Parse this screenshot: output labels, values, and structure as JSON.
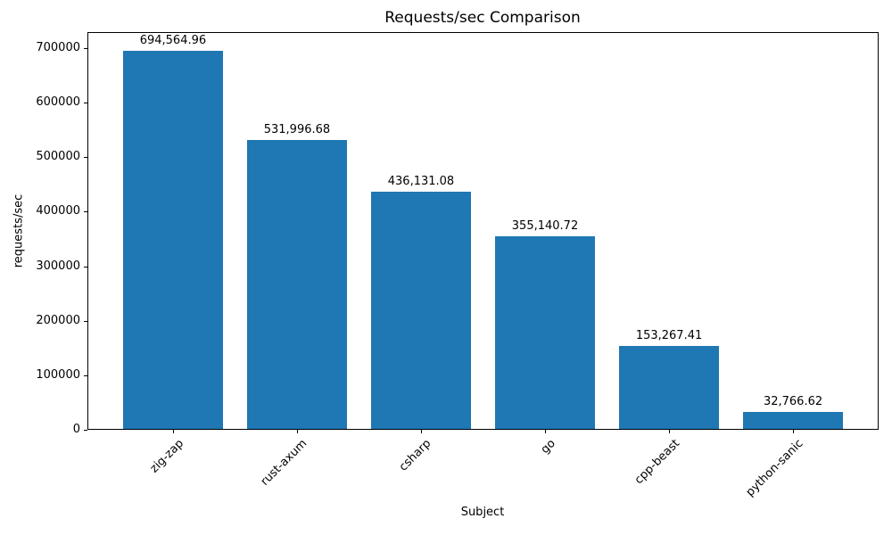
{
  "chart_data": {
    "type": "bar",
    "title": "Requests/sec Comparison",
    "xlabel": "Subject",
    "ylabel": "requests/sec",
    "categories": [
      "zig-zap",
      "rust-axum",
      "csharp",
      "go",
      "cpp-beast",
      "python-sanic"
    ],
    "values": [
      694564.96,
      531996.68,
      436131.08,
      355140.72,
      153267.41,
      32766.62
    ],
    "bar_labels": [
      "694,564.96",
      "531,996.68",
      "436,131.08",
      "355,140.72",
      "153,267.41",
      "32,766.62"
    ],
    "y_ticks": [
      0,
      100000,
      200000,
      300000,
      400000,
      500000,
      600000,
      700000
    ],
    "y_tick_labels": [
      "0",
      "100000",
      "200000",
      "300000",
      "400000",
      "500000",
      "600000",
      "700000"
    ],
    "ylim": [
      0,
      729293
    ],
    "bar_color": "#1f77b4",
    "grid": false,
    "legend_position": "none"
  }
}
